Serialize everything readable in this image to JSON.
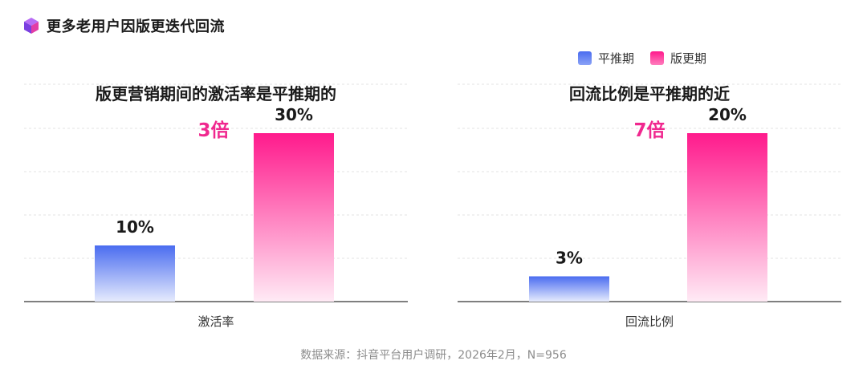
{
  "header": {
    "title": "更多老用户因版更迭代回流",
    "logo": "purple-cube-logo"
  },
  "legend": {
    "items": [
      {
        "label": "平推期",
        "color": "#4a6cf0"
      },
      {
        "label": "版更期",
        "color": "#ff1a8c"
      }
    ]
  },
  "source": "数据来源：抖音平台用户调研，2026年2月，N=956",
  "colors": {
    "blue_top": "#4a6cf0",
    "blue_bottom": "#e6ebfd",
    "pink_top": "#ff1a8c",
    "pink_bottom": "#ffeaf5",
    "highlight": "#f0288f",
    "grid": "#e3e3e3",
    "axis": "#333333"
  },
  "chart_data": [
    {
      "type": "bar",
      "title": "版更营销期间的激活率是平推期的",
      "highlight": "3倍",
      "categories": [
        "激活率"
      ],
      "series": [
        {
          "name": "平推期",
          "values": [
            10
          ],
          "labels": [
            "10%"
          ]
        },
        {
          "name": "版更期",
          "values": [
            30
          ],
          "labels": [
            "30%"
          ]
        }
      ],
      "ylim": [
        0,
        36
      ],
      "grid": true,
      "legend": "top-right"
    },
    {
      "type": "bar",
      "title": "回流比例是平推期的近",
      "highlight": "7倍",
      "categories": [
        "回流比例"
      ],
      "series": [
        {
          "name": "平推期",
          "values": [
            3
          ],
          "labels": [
            "3%"
          ]
        },
        {
          "name": "版更期",
          "values": [
            20
          ],
          "labels": [
            "20%"
          ]
        }
      ],
      "ylim": [
        0,
        24
      ],
      "grid": true,
      "legend": "top-right"
    }
  ]
}
